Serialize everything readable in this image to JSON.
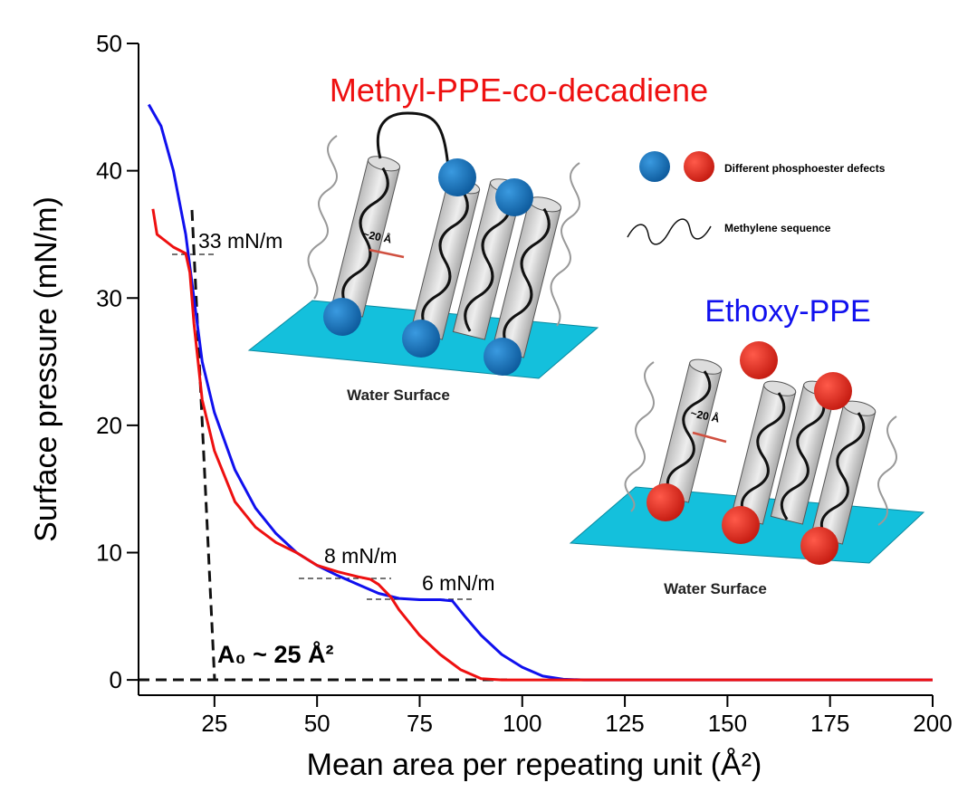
{
  "chart_data": {
    "type": "line",
    "y_label": "Surface pressure (mN/m)",
    "x_label": "Mean area per repeating unit (Å²)",
    "xlim": [
      6.5,
      200
    ],
    "xticks": [
      25,
      50,
      75,
      100,
      125,
      150,
      175,
      200
    ],
    "ylim": [
      -1.2,
      50
    ],
    "yticks": [
      0,
      10,
      20,
      30,
      40,
      50
    ],
    "series": [
      {
        "name": "Ethoxy-PPE",
        "color": "#1010ee",
        "x": [
          9,
          12,
          15,
          18,
          20,
          22,
          25,
          30,
          35,
          40,
          45,
          50,
          55,
          60,
          65,
          70,
          75,
          80,
          83,
          86,
          90,
          95,
          100,
          105,
          110,
          115,
          150,
          200
        ],
        "values": [
          45.2,
          43.5,
          40,
          35,
          30,
          25,
          21,
          16.5,
          13.5,
          11.5,
          10,
          9,
          8.2,
          7.5,
          6.8,
          6.4,
          6.3,
          6.3,
          6.2,
          5,
          3.5,
          2,
          1,
          0.3,
          0.05,
          0,
          0,
          0
        ]
      },
      {
        "name": "Methyl-PPE-co-decadiene",
        "color": "#ee1010",
        "x": [
          10,
          11,
          13,
          15,
          18,
          19,
          20,
          22,
          25,
          30,
          35,
          40,
          45,
          50,
          55,
          60,
          63,
          65,
          68,
          70,
          75,
          80,
          85,
          90,
          95,
          150,
          200
        ],
        "values": [
          37,
          35,
          34.5,
          34,
          33.5,
          32,
          28,
          22,
          18,
          14,
          12,
          10.8,
          10,
          9,
          8.5,
          8.1,
          7.9,
          7.5,
          6.5,
          5.5,
          3.5,
          2,
          0.8,
          0.1,
          0,
          0,
          0
        ]
      }
    ],
    "annotations": [
      "33 mN/m",
      "8 mN/m",
      "6 mN/m",
      "A₀ ~ 25 Å²"
    ],
    "schematic": {
      "surface_label": "Water Surface",
      "spacing_label": "~20 Å",
      "defects_label": "Different phosphoester defects",
      "methylene_label": "Methylene sequence"
    }
  }
}
